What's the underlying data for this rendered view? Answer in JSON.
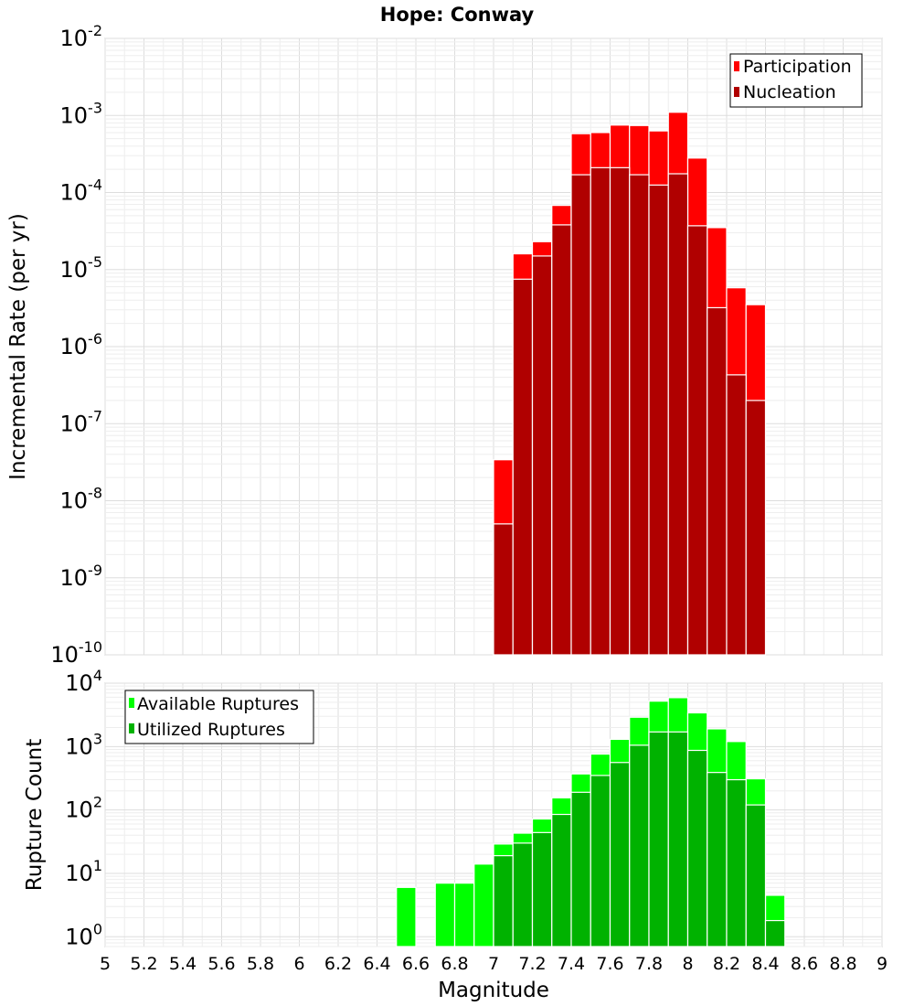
{
  "chart_data": [
    {
      "type": "bar",
      "title": "Hope: Conway",
      "xlabel": "",
      "ylabel": "Incremental Rate (per yr)",
      "yscale": "log",
      "ylim": [
        1e-10,
        0.01
      ],
      "xlim": [
        5,
        9
      ],
      "ytick_labels": [
        {
          "base": "10",
          "exp": "-10",
          "value": 1e-10
        },
        {
          "base": "10",
          "exp": "-9",
          "value": 1e-09
        },
        {
          "base": "10",
          "exp": "-8",
          "value": 1e-08
        },
        {
          "base": "10",
          "exp": "-7",
          "value": 1e-07
        },
        {
          "base": "10",
          "exp": "-6",
          "value": 1e-06
        },
        {
          "base": "10",
          "exp": "-5",
          "value": 1e-05
        },
        {
          "base": "10",
          "exp": "-4",
          "value": 0.0001
        },
        {
          "base": "10",
          "exp": "-3",
          "value": 0.001
        },
        {
          "base": "10",
          "exp": "-2",
          "value": 0.01
        }
      ],
      "bin_width": 0.1,
      "x": [
        7.05,
        7.15,
        7.25,
        7.35,
        7.45,
        7.55,
        7.65,
        7.75,
        7.85,
        7.95,
        8.05,
        8.15,
        8.25,
        8.35
      ],
      "series": [
        {
          "name": "Participation",
          "color": "#ff0000",
          "values": [
            3.4e-08,
            1.6e-05,
            2.3e-05,
            6.8e-05,
            0.00058,
            0.0006,
            0.00075,
            0.00074,
            0.00063,
            0.0011,
            0.00028,
            3.5e-05,
            5.8e-06,
            3.5e-06
          ]
        },
        {
          "name": "Nucleation",
          "color": "#b00000",
          "values": [
            5e-09,
            7.5e-06,
            1.5e-05,
            3.8e-05,
            0.00017,
            0.00021,
            0.00021,
            0.00017,
            0.000125,
            0.000175,
            3.7e-05,
            3.2e-06,
            4.3e-07,
            2e-07
          ]
        }
      ],
      "legend_position": "top-right",
      "grid": true
    },
    {
      "type": "bar",
      "xlabel": "Magnitude",
      "ylabel": "Rupture Count",
      "yscale": "log",
      "ylim": [
        0.7,
        10000
      ],
      "xlim": [
        5,
        9
      ],
      "ytick_labels": [
        {
          "base": "10",
          "exp": "0",
          "value": 1
        },
        {
          "base": "10",
          "exp": "1",
          "value": 10
        },
        {
          "base": "10",
          "exp": "2",
          "value": 100
        },
        {
          "base": "10",
          "exp": "3",
          "value": 1000
        },
        {
          "base": "10",
          "exp": "4",
          "value": 10000
        }
      ],
      "xtick_labels": [
        "5",
        "5.2",
        "5.4",
        "5.6",
        "5.8",
        "6",
        "6.2",
        "6.4",
        "6.6",
        "6.8",
        "7",
        "7.2",
        "7.4",
        "7.6",
        "7.8",
        "8",
        "8.2",
        "8.4",
        "8.6",
        "8.8",
        "9"
      ],
      "bin_width": 0.1,
      "x": [
        6.55,
        6.75,
        6.85,
        6.95,
        7.05,
        7.15,
        7.25,
        7.35,
        7.45,
        7.55,
        7.65,
        7.75,
        7.85,
        7.95,
        8.05,
        8.15,
        8.25,
        8.35,
        8.45
      ],
      "series": [
        {
          "name": "Available Ruptures",
          "color": "#00ff00",
          "values": [
            6,
            7,
            7,
            14,
            29,
            43,
            72,
            155,
            370,
            760,
            1300,
            2900,
            5200,
            5900,
            3400,
            1900,
            1200,
            310,
            4.5
          ]
        },
        {
          "name": "Utilized Ruptures",
          "color": "#00b200",
          "values": [
            0,
            0,
            0,
            0,
            19,
            30,
            44,
            85,
            190,
            350,
            560,
            1050,
            1700,
            1700,
            870,
            390,
            300,
            120,
            1.8
          ]
        }
      ],
      "legend_position": "top-left",
      "grid": true
    }
  ]
}
